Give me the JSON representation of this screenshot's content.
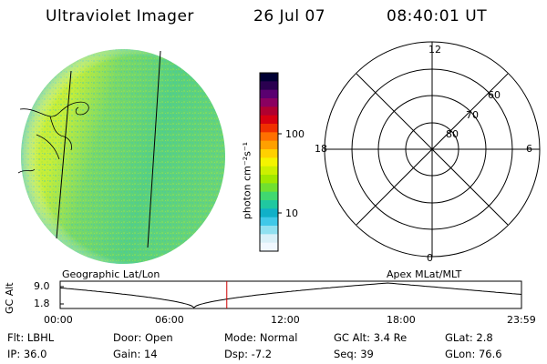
{
  "header": {
    "title": "Ultraviolet Imager",
    "date": "26 Jul 07",
    "time": "08:40:01 UT"
  },
  "colorbar": {
    "unit_label": "photon cm⁻²s⁻¹",
    "ticks": [
      "100",
      "10"
    ],
    "colors": [
      "#000033",
      "#2a0050",
      "#5a0070",
      "#8a0060",
      "#b00030",
      "#d80010",
      "#f03000",
      "#ff7000",
      "#ffa000",
      "#ffd000",
      "#f4f400",
      "#ccf000",
      "#a0e800",
      "#70e030",
      "#40d870",
      "#20c8a0",
      "#10b0c8",
      "#40c8e8",
      "#90e0f0",
      "#d8f0f8",
      "#f0f8ff"
    ]
  },
  "geo_panel": {
    "caption": "Geographic Lat/Lon"
  },
  "apex_panel": {
    "caption": "Apex MLat/MLT",
    "mlt_labels": {
      "top": "12",
      "left": "18",
      "right": "6",
      "bottom": "0"
    },
    "lat_labels": [
      "60",
      "70",
      "80"
    ]
  },
  "timeline": {
    "axis_label": "GC Alt",
    "y_ticks": [
      "9.0",
      "1.8"
    ],
    "x_ticks": [
      "00:00",
      "06:00",
      "12:00",
      "18:00",
      "23:59"
    ],
    "current_marker_color": "#cc0000",
    "current_time_fraction": 0.3612
  },
  "info": {
    "flt": "Flt: LBHL",
    "ip": "IP: 36.0",
    "door": "Door: Open",
    "gain": "Gain: 14",
    "mode": "Mode: Normal",
    "dsp": "Dsp:    -7.2",
    "gcalt": "GC Alt: 3.4 Re",
    "seq": "Seq: 39",
    "glat": "GLat:    2.8",
    "glon": "GLon:  76.6"
  }
}
